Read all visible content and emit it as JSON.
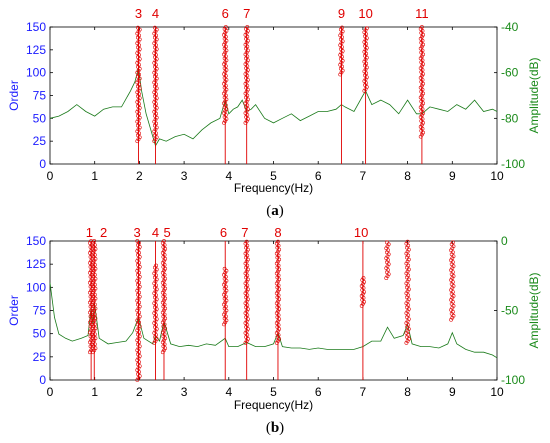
{
  "chart_data": [
    {
      "type": "line",
      "panel_label_open": "(",
      "panel_label_letter": "a",
      "panel_label_close": ")",
      "xlabel": "Frequency(Hz)",
      "ylabel": "Order",
      "ylabel_right": "Amplitude(dB)",
      "xlim": [
        0,
        10
      ],
      "ylim": [
        0,
        150
      ],
      "ylim_right": [
        -100,
        -40
      ],
      "x_ticks": [
        "0",
        "1",
        "2",
        "3",
        "4",
        "5",
        "6",
        "7",
        "8",
        "9",
        "10"
      ],
      "y_ticks": [
        "0",
        "25",
        "50",
        "75",
        "100",
        "125",
        "150"
      ],
      "y_ticks_right": [
        "-100",
        "-80",
        "-60",
        "-40"
      ],
      "colors": {
        "order_axis": "#1a1aff",
        "amplitude_axis": "#1a8a1a",
        "order_markers": "#e00000",
        "amplitude_line": "#1a7a1a"
      },
      "order_lines": [
        {
          "label": "3",
          "x": 1.98
        },
        {
          "label": "4",
          "x": 2.36
        },
        {
          "label": "6",
          "x": 3.92
        },
        {
          "label": "7",
          "x": 4.4
        },
        {
          "label": "9",
          "x": 6.52
        },
        {
          "label": "10",
          "x": 7.06
        },
        {
          "label": "11",
          "x": 8.32
        }
      ],
      "marker_clusters": [
        {
          "x": 1.98,
          "y_min": 25,
          "y_max": 150
        },
        {
          "x": 2.36,
          "y_min": 25,
          "y_max": 150
        },
        {
          "x": 3.92,
          "y_min": 45,
          "y_max": 150
        },
        {
          "x": 4.4,
          "y_min": 45,
          "y_max": 150
        },
        {
          "x": 6.52,
          "y_min": 98,
          "y_max": 150
        },
        {
          "x": 7.06,
          "y_min": 80,
          "y_max": 150
        },
        {
          "x": 8.32,
          "y_min": 30,
          "y_max": 150
        }
      ],
      "amplitude": {
        "x": [
          0,
          0.2,
          0.4,
          0.6,
          0.8,
          1.0,
          1.2,
          1.4,
          1.6,
          1.8,
          1.9,
          1.98,
          2.05,
          2.15,
          2.3,
          2.36,
          2.45,
          2.6,
          2.8,
          3.0,
          3.2,
          3.4,
          3.6,
          3.8,
          3.92,
          4.0,
          4.1,
          4.2,
          4.3,
          4.4,
          4.5,
          4.6,
          4.8,
          5.0,
          5.2,
          5.4,
          5.6,
          5.8,
          6.0,
          6.2,
          6.4,
          6.52,
          6.6,
          6.8,
          7.0,
          7.06,
          7.2,
          7.4,
          7.6,
          7.8,
          8.0,
          8.2,
          8.32,
          8.5,
          8.7,
          8.9,
          9.1,
          9.3,
          9.5,
          9.7,
          9.9,
          10
        ],
        "y": [
          -80,
          -79,
          -77,
          -74,
          -77,
          -79,
          -76,
          -75,
          -75,
          -68,
          -64,
          -58,
          -68,
          -78,
          -88,
          -92,
          -89,
          -90,
          -88,
          -87,
          -89,
          -85,
          -82,
          -80,
          -72,
          -78,
          -76,
          -75,
          -72,
          -77,
          -76,
          -74,
          -80,
          -82,
          -80,
          -78,
          -81,
          -79,
          -77,
          -77,
          -76,
          -74,
          -75,
          -77,
          -70,
          -68,
          -74,
          -72,
          -74,
          -78,
          -72,
          -78,
          -78,
          -75,
          -76,
          -77,
          -74,
          -76,
          -72,
          -77,
          -76,
          -77
        ]
      }
    },
    {
      "type": "line",
      "panel_label_open": "(",
      "panel_label_letter": "b",
      "panel_label_close": ")",
      "xlabel": "Frequency(Hz)",
      "ylabel": "Order",
      "ylabel_right": "Amplitude(dB)",
      "xlim": [
        0,
        10
      ],
      "ylim": [
        0,
        150
      ],
      "ylim_right": [
        -100,
        0
      ],
      "x_ticks": [
        "0",
        "1",
        "2",
        "3",
        "4",
        "5",
        "6",
        "7",
        "8",
        "9",
        "10"
      ],
      "y_ticks": [
        "0",
        "25",
        "50",
        "75",
        "100",
        "125",
        "150"
      ],
      "y_ticks_right": [
        "-100",
        "-50",
        "0"
      ],
      "colors": {
        "order_axis": "#1a1aff",
        "amplitude_axis": "#1a8a1a",
        "order_markers": "#e00000",
        "amplitude_line": "#1a7a1a"
      },
      "order_lines": [
        {
          "label": "1",
          "x": 0.92
        },
        {
          "label": "2",
          "x": 0.99
        },
        {
          "label": "3",
          "x": 1.98
        },
        {
          "label": "4",
          "x": 2.36
        },
        {
          "label": "5",
          "x": 2.55
        },
        {
          "label": "6",
          "x": 3.92
        },
        {
          "label": "7",
          "x": 4.4
        },
        {
          "label": "8",
          "x": 5.1
        },
        {
          "label": "10",
          "x": 7.0
        }
      ],
      "label_positions": [
        0.88,
        1.2,
        1.95,
        2.36,
        2.62,
        3.88,
        4.36,
        5.1,
        6.96
      ],
      "marker_clusters": [
        {
          "x": 0.92,
          "y_min": 30,
          "y_max": 150
        },
        {
          "x": 0.99,
          "y_min": 30,
          "y_max": 150
        },
        {
          "x": 1.98,
          "y_min": 0,
          "y_max": 150
        },
        {
          "x": 2.36,
          "y_min": 40,
          "y_max": 125
        },
        {
          "x": 2.55,
          "y_min": 30,
          "y_max": 150
        },
        {
          "x": 3.92,
          "y_min": 60,
          "y_max": 120
        },
        {
          "x": 4.4,
          "y_min": 40,
          "y_max": 150
        },
        {
          "x": 5.1,
          "y_min": 40,
          "y_max": 150
        },
        {
          "x": 7.0,
          "y_min": 80,
          "y_max": 110
        },
        {
          "x": 7.55,
          "y_min": 110,
          "y_max": 150
        },
        {
          "x": 8.0,
          "y_min": 40,
          "y_max": 150
        },
        {
          "x": 9.0,
          "y_min": 65,
          "y_max": 150
        }
      ],
      "amplitude": {
        "x": [
          0,
          0.1,
          0.2,
          0.35,
          0.5,
          0.7,
          0.85,
          0.92,
          0.96,
          0.99,
          1.1,
          1.3,
          1.5,
          1.7,
          1.85,
          1.98,
          2.1,
          2.3,
          2.36,
          2.45,
          2.55,
          2.7,
          2.9,
          3.1,
          3.3,
          3.5,
          3.7,
          3.92,
          4.0,
          4.2,
          4.4,
          4.6,
          4.8,
          5.0,
          5.1,
          5.2,
          5.4,
          5.6,
          5.8,
          6.0,
          6.2,
          6.4,
          6.6,
          6.8,
          7.0,
          7.2,
          7.4,
          7.55,
          7.7,
          7.9,
          8.0,
          8.1,
          8.3,
          8.5,
          8.7,
          8.9,
          9.0,
          9.1,
          9.3,
          9.5,
          9.7,
          9.9,
          10
        ],
        "y": [
          -30,
          -55,
          -67,
          -70,
          -72,
          -70,
          -68,
          -48,
          -60,
          -44,
          -70,
          -74,
          -73,
          -72,
          -66,
          -55,
          -70,
          -74,
          -68,
          -72,
          -58,
          -74,
          -76,
          -75,
          -76,
          -74,
          -75,
          -70,
          -76,
          -76,
          -73,
          -76,
          -76,
          -74,
          -66,
          -76,
          -77,
          -77,
          -78,
          -77,
          -78,
          -78,
          -78,
          -78,
          -76,
          -72,
          -72,
          -62,
          -70,
          -68,
          -60,
          -74,
          -76,
          -76,
          -77,
          -74,
          -66,
          -74,
          -78,
          -80,
          -80,
          -82,
          -84
        ]
      }
    }
  ]
}
